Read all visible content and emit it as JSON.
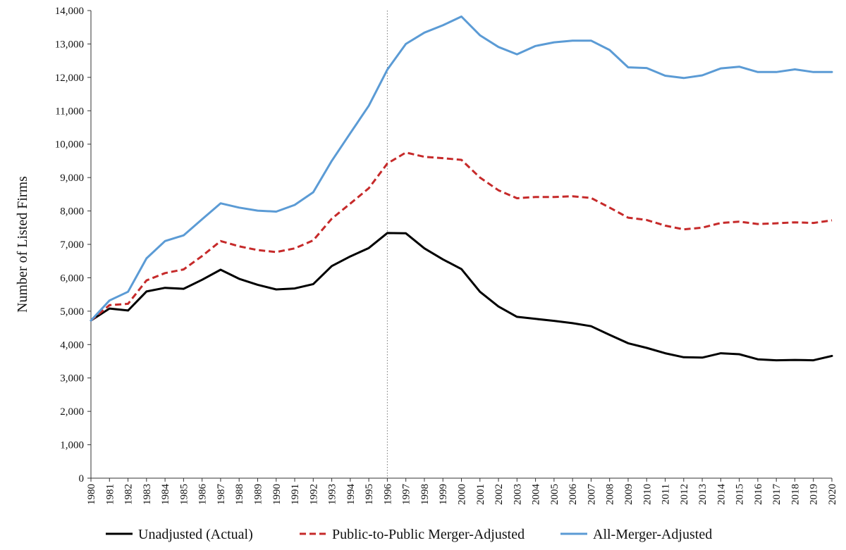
{
  "chart_data": {
    "type": "line",
    "title": "",
    "xlabel": "",
    "ylabel": "Number of Listed Firms",
    "ylim": [
      0,
      14000
    ],
    "yticks": [
      0,
      1000,
      2000,
      3000,
      4000,
      5000,
      6000,
      7000,
      8000,
      9000,
      10000,
      11000,
      12000,
      13000,
      14000
    ],
    "ytick_labels": [
      "0",
      "1,000",
      "2,000",
      "3,000",
      "4,000",
      "5,000",
      "6,000",
      "7,000",
      "8,000",
      "9,000",
      "10,000",
      "11,000",
      "12,000",
      "13,000",
      "14,000"
    ],
    "x": [
      "1980",
      "1981",
      "1982",
      "1983",
      "1984",
      "1985",
      "1986",
      "1987",
      "1988",
      "1989",
      "1990",
      "1991",
      "1992",
      "1993",
      "1994",
      "1995",
      "1996",
      "1997",
      "1998",
      "1999",
      "2000",
      "2001",
      "2002",
      "2003",
      "2004",
      "2005",
      "2006",
      "2007",
      "2008",
      "2009",
      "2010",
      "2011",
      "2012",
      "2013",
      "2014",
      "2015",
      "2016",
      "2017",
      "2018",
      "2019",
      "2020"
    ],
    "reference_line_x": "1996",
    "grid": false,
    "legend_position": "bottom",
    "series": [
      {
        "name": "Unadjusted (Actual)",
        "color": "#000000",
        "style": "solid",
        "values": [
          4720,
          5080,
          5020,
          5590,
          5700,
          5670,
          5940,
          6240,
          5970,
          5790,
          5650,
          5680,
          5810,
          6350,
          6640,
          6890,
          7340,
          7330,
          6880,
          6550,
          6260,
          5580,
          5140,
          4830,
          4770,
          4710,
          4640,
          4550,
          4290,
          4040,
          3900,
          3740,
          3620,
          3610,
          3740,
          3710,
          3560,
          3530,
          3540,
          3530,
          3660
        ]
      },
      {
        "name": "Public-to-Public Merger-Adjusted",
        "color": "#c62a2a",
        "style": "dashed",
        "values": [
          4720,
          5180,
          5220,
          5920,
          6140,
          6250,
          6650,
          7100,
          6940,
          6830,
          6770,
          6880,
          7120,
          7770,
          8220,
          8680,
          9420,
          9750,
          9620,
          9580,
          9530,
          9000,
          8620,
          8380,
          8420,
          8420,
          8440,
          8390,
          8100,
          7800,
          7730,
          7560,
          7450,
          7500,
          7640,
          7680,
          7610,
          7630,
          7660,
          7640,
          7720
        ]
      },
      {
        "name": "All-Merger-Adjusted",
        "color": "#5b9bd5",
        "style": "solid",
        "values": [
          4720,
          5320,
          5580,
          6580,
          7100,
          7270,
          7750,
          8230,
          8100,
          8010,
          7980,
          8180,
          8560,
          9500,
          10330,
          11150,
          12230,
          13000,
          13340,
          13560,
          13820,
          13260,
          12910,
          12690,
          12940,
          13050,
          13100,
          13100,
          12820,
          12300,
          12280,
          12050,
          11980,
          12060,
          12270,
          12320,
          12160,
          12160,
          12240,
          12160,
          12160
        ]
      }
    ]
  }
}
